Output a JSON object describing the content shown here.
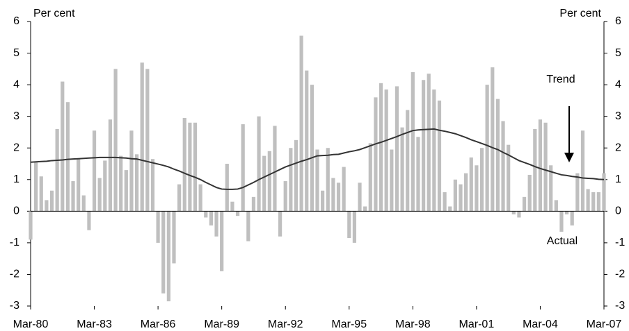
{
  "chart_data": {
    "type": "bar",
    "y_label": "Per cent",
    "y2_label": "Per cent",
    "annotations": [
      "Trend",
      "Actual"
    ],
    "categories": [
      "Mar-80",
      null,
      null,
      null,
      null,
      null,
      null,
      null,
      null,
      null,
      null,
      null,
      "Mar-83",
      null,
      null,
      null,
      null,
      null,
      null,
      null,
      null,
      null,
      null,
      null,
      "Mar-86",
      null,
      null,
      null,
      null,
      null,
      null,
      null,
      null,
      null,
      null,
      null,
      "Mar-89",
      null,
      null,
      null,
      null,
      null,
      null,
      null,
      null,
      null,
      null,
      null,
      "Mar-92",
      null,
      null,
      null,
      null,
      null,
      null,
      null,
      null,
      null,
      null,
      null,
      "Mar-95",
      null,
      null,
      null,
      null,
      null,
      null,
      null,
      null,
      null,
      null,
      null,
      "Mar-98",
      null,
      null,
      null,
      null,
      null,
      null,
      null,
      null,
      null,
      null,
      null,
      "Mar-01",
      null,
      null,
      null,
      null,
      null,
      null,
      null,
      null,
      null,
      null,
      null,
      "Mar-04",
      null,
      null,
      null,
      null,
      null,
      null,
      null,
      null,
      null,
      null,
      null,
      "Mar-07"
    ],
    "series": [
      {
        "name": "Actual",
        "color": "#bfbfbf",
        "values": [
          -0.9,
          1.55,
          1.1,
          0.35,
          0.65,
          2.6,
          4.1,
          3.45,
          0.95,
          1.65,
          0.5,
          -0.6,
          2.55,
          1.05,
          1.6,
          2.9,
          4.5,
          1.75,
          1.3,
          2.55,
          1.8,
          4.7,
          4.5,
          1.65,
          -1.0,
          -2.6,
          -2.85,
          -1.65,
          0.85,
          2.95,
          2.8,
          2.8,
          0.85,
          -0.2,
          -0.45,
          -0.8,
          -1.9,
          1.5,
          0.3,
          -0.15,
          2.75,
          -0.95,
          0.45,
          3.0,
          1.75,
          1.9,
          2.7,
          -0.8,
          0.95,
          2.0,
          2.25,
          5.55,
          4.45,
          4.0,
          1.95,
          0.65,
          2.0,
          1.05,
          0.9,
          1.4,
          -0.85,
          -1.0,
          0.9,
          0.15,
          2.15,
          3.6,
          4.05,
          3.85,
          1.95,
          3.95,
          2.65,
          3.2,
          4.4,
          2.35,
          4.15,
          4.35,
          3.85,
          3.5,
          0.6,
          0.15,
          1.0,
          0.85,
          1.2,
          1.7,
          1.45,
          2.0,
          4.0,
          4.55,
          3.55,
          2.85,
          2.1,
          -0.1,
          -0.2,
          0.45,
          1.15,
          2.6,
          2.9,
          2.8,
          1.45,
          0.35,
          -0.65,
          -0.1,
          -0.45,
          1.2,
          2.55,
          0.7,
          0.6,
          0.6,
          1.2
        ]
      },
      {
        "name": "Trend",
        "color": "#333333",
        "type": "line",
        "values": [
          1.55,
          1.56,
          1.57,
          1.58,
          1.6,
          1.61,
          1.62,
          1.64,
          1.65,
          1.66,
          1.67,
          1.68,
          1.69,
          1.7,
          1.7,
          1.7,
          1.7,
          1.69,
          1.68,
          1.66,
          1.65,
          1.61,
          1.57,
          1.53,
          1.49,
          1.45,
          1.4,
          1.33,
          1.27,
          1.2,
          1.13,
          1.07,
          1.0,
          0.91,
          0.83,
          0.75,
          0.7,
          0.69,
          0.69,
          0.7,
          0.75,
          0.83,
          0.91,
          1.0,
          1.08,
          1.16,
          1.24,
          1.32,
          1.4,
          1.46,
          1.52,
          1.58,
          1.63,
          1.69,
          1.75,
          1.76,
          1.77,
          1.79,
          1.8,
          1.84,
          1.88,
          1.91,
          1.95,
          2.01,
          2.07,
          2.13,
          2.18,
          2.24,
          2.3,
          2.36,
          2.43,
          2.49,
          2.55,
          2.57,
          2.58,
          2.59,
          2.6,
          2.56,
          2.53,
          2.49,
          2.45,
          2.39,
          2.33,
          2.26,
          2.2,
          2.14,
          2.08,
          2.01,
          1.95,
          1.86,
          1.78,
          1.69,
          1.6,
          1.54,
          1.48,
          1.41,
          1.35,
          1.3,
          1.25,
          1.2,
          1.15,
          1.13,
          1.1,
          1.08,
          1.05,
          1.04,
          1.03,
          1.01,
          1.0
        ]
      }
    ],
    "ylim": [
      -3,
      6
    ],
    "yticks": [
      -3,
      -2,
      -1,
      0,
      1,
      2,
      3,
      4,
      5,
      6
    ],
    "y2lim": [
      -3,
      6
    ],
    "y2ticks": [
      -3,
      -2,
      -1,
      0,
      1,
      2,
      3,
      4,
      5,
      6
    ],
    "grid": false
  }
}
